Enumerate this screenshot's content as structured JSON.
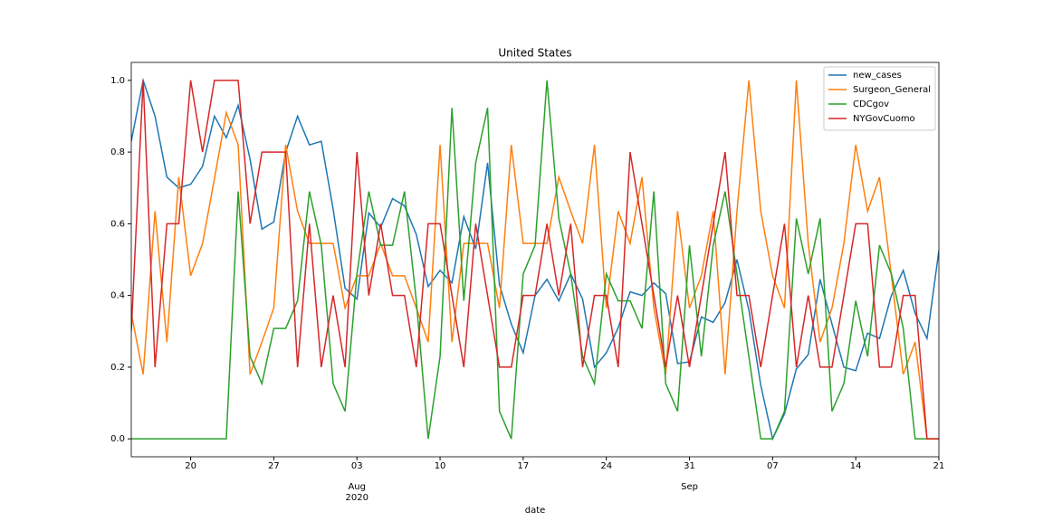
{
  "chart_data": {
    "type": "line",
    "title": "United States",
    "xlabel": "date",
    "x": [
      "2020-07-15",
      "2020-07-16",
      "2020-07-17",
      "2020-07-18",
      "2020-07-19",
      "2020-07-20",
      "2020-07-21",
      "2020-07-22",
      "2020-07-23",
      "2020-07-24",
      "2020-07-25",
      "2020-07-26",
      "2020-07-27",
      "2020-07-28",
      "2020-07-29",
      "2020-07-30",
      "2020-07-31",
      "2020-08-01",
      "2020-08-02",
      "2020-08-03",
      "2020-08-04",
      "2020-08-05",
      "2020-08-06",
      "2020-08-07",
      "2020-08-08",
      "2020-08-09",
      "2020-08-10",
      "2020-08-11",
      "2020-08-12",
      "2020-08-13",
      "2020-08-14",
      "2020-08-15",
      "2020-08-16",
      "2020-08-17",
      "2020-08-18",
      "2020-08-19",
      "2020-08-20",
      "2020-08-21",
      "2020-08-22",
      "2020-08-23",
      "2020-08-24",
      "2020-08-25",
      "2020-08-26",
      "2020-08-27",
      "2020-08-28",
      "2020-08-29",
      "2020-08-30",
      "2020-08-31",
      "2020-09-01",
      "2020-09-02",
      "2020-09-03",
      "2020-09-04",
      "2020-09-05",
      "2020-09-06",
      "2020-09-07",
      "2020-09-08",
      "2020-09-09",
      "2020-09-10",
      "2020-09-11",
      "2020-09-12",
      "2020-09-13",
      "2020-09-14",
      "2020-09-15",
      "2020-09-16",
      "2020-09-17",
      "2020-09-18",
      "2020-09-19",
      "2020-09-20",
      "2020-09-21"
    ],
    "series": [
      {
        "name": "new_cases",
        "color": "#1f77b4",
        "values": [
          0.83,
          1.0,
          0.9,
          0.73,
          0.7,
          0.71,
          0.76,
          0.9,
          0.84,
          0.93,
          0.78,
          0.585,
          0.605,
          0.8,
          0.9,
          0.82,
          0.83,
          0.64,
          0.42,
          0.39,
          0.63,
          0.59,
          0.67,
          0.65,
          0.57,
          0.425,
          0.47,
          0.435,
          0.62,
          0.53,
          0.77,
          0.43,
          0.32,
          0.24,
          0.4,
          0.445,
          0.385,
          0.46,
          0.39,
          0.2,
          0.24,
          0.31,
          0.41,
          0.4,
          0.435,
          0.405,
          0.21,
          0.215,
          0.34,
          0.325,
          0.38,
          0.5,
          0.36,
          0.15,
          0.0,
          0.07,
          0.195,
          0.235,
          0.445,
          0.32,
          0.2,
          0.19,
          0.295,
          0.28,
          0.4,
          0.47,
          0.35,
          0.28,
          0.525
        ]
      },
      {
        "name": "Surgeon_General",
        "color": "#ff7f0e",
        "values": [
          0.35,
          0.18,
          0.635,
          0.27,
          0.73,
          0.455,
          0.545,
          0.725,
          0.91,
          0.82,
          0.18,
          0.27,
          0.365,
          0.82,
          0.635,
          0.545,
          0.545,
          0.545,
          0.365,
          0.455,
          0.455,
          0.545,
          0.455,
          0.455,
          0.365,
          0.27,
          0.82,
          0.27,
          0.545,
          0.545,
          0.545,
          0.365,
          0.82,
          0.545,
          0.545,
          0.545,
          0.73,
          0.635,
          0.545,
          0.82,
          0.365,
          0.635,
          0.545,
          0.73,
          0.365,
          0.18,
          0.635,
          0.365,
          0.455,
          0.635,
          0.18,
          0.635,
          1.0,
          0.635,
          0.455,
          0.365,
          1.0,
          0.545,
          0.27,
          0.365,
          0.545,
          0.82,
          0.635,
          0.73,
          0.455,
          0.18,
          0.27,
          0.0,
          0.0
        ]
      },
      {
        "name": "CDCgov",
        "color": "#2ca02c",
        "values": [
          0,
          0,
          0,
          0,
          0,
          0,
          0,
          0,
          0,
          0.69,
          0.23,
          0.154,
          0.308,
          0.308,
          0.385,
          0.69,
          0.54,
          0.154,
          0.077,
          0.46,
          0.69,
          0.54,
          0.54,
          0.69,
          0.385,
          0.0,
          0.23,
          0.923,
          0.385,
          0.77,
          0.923,
          0.077,
          0.0,
          0.46,
          0.54,
          1.0,
          0.615,
          0.46,
          0.23,
          0.154,
          0.46,
          0.385,
          0.385,
          0.308,
          0.69,
          0.154,
          0.077,
          0.54,
          0.23,
          0.54,
          0.69,
          0.46,
          0.23,
          0.0,
          0.0,
          0.077,
          0.615,
          0.46,
          0.615,
          0.077,
          0.154,
          0.385,
          0.23,
          0.54,
          0.46,
          0.308,
          0.0,
          0.0,
          0.0
        ]
      },
      {
        "name": "NYGovCuomo",
        "color": "#d62728",
        "values": [
          0.3,
          1.0,
          0.2,
          0.6,
          0.6,
          1.0,
          0.8,
          1.0,
          1.0,
          1.0,
          0.6,
          0.8,
          0.8,
          0.8,
          0.2,
          0.6,
          0.2,
          0.4,
          0.2,
          0.8,
          0.4,
          0.6,
          0.4,
          0.4,
          0.2,
          0.6,
          0.6,
          0.4,
          0.2,
          0.6,
          0.4,
          0.2,
          0.2,
          0.4,
          0.4,
          0.6,
          0.4,
          0.6,
          0.2,
          0.4,
          0.4,
          0.2,
          0.8,
          0.6,
          0.4,
          0.2,
          0.4,
          0.2,
          0.4,
          0.6,
          0.8,
          0.4,
          0.4,
          0.2,
          0.4,
          0.6,
          0.2,
          0.4,
          0.2,
          0.2,
          0.4,
          0.6,
          0.6,
          0.2,
          0.2,
          0.4,
          0.4,
          0.0,
          0.0
        ]
      }
    ],
    "xlim": [
      "2020-07-15",
      "2020-09-21"
    ],
    "xticks": [
      {
        "value": "2020-07-20",
        "label": "20"
      },
      {
        "value": "2020-07-27",
        "label": "27"
      },
      {
        "value": "2020-08-03",
        "label": "03"
      },
      {
        "value": "2020-08-10",
        "label": "10"
      },
      {
        "value": "2020-08-17",
        "label": "17"
      },
      {
        "value": "2020-08-24",
        "label": "24"
      },
      {
        "value": "2020-08-31",
        "label": "31"
      },
      {
        "value": "2020-09-07",
        "label": "07"
      },
      {
        "value": "2020-09-14",
        "label": "14"
      },
      {
        "value": "2020-09-21",
        "label": "21"
      }
    ],
    "xmonth_labels": [
      {
        "value": "2020-08-03",
        "lines": [
          "Aug",
          "2020"
        ]
      },
      {
        "value": "2020-08-31",
        "lines": [
          "Sep"
        ]
      }
    ],
    "ylim": [
      -0.05,
      1.05
    ],
    "yticks": [
      {
        "value": 0,
        "label": "0.0"
      },
      0.2,
      0.4,
      0.6,
      0.8,
      {
        "value": 1,
        "label": "1.0"
      }
    ],
    "legend": "upper right",
    "grid": false
  }
}
